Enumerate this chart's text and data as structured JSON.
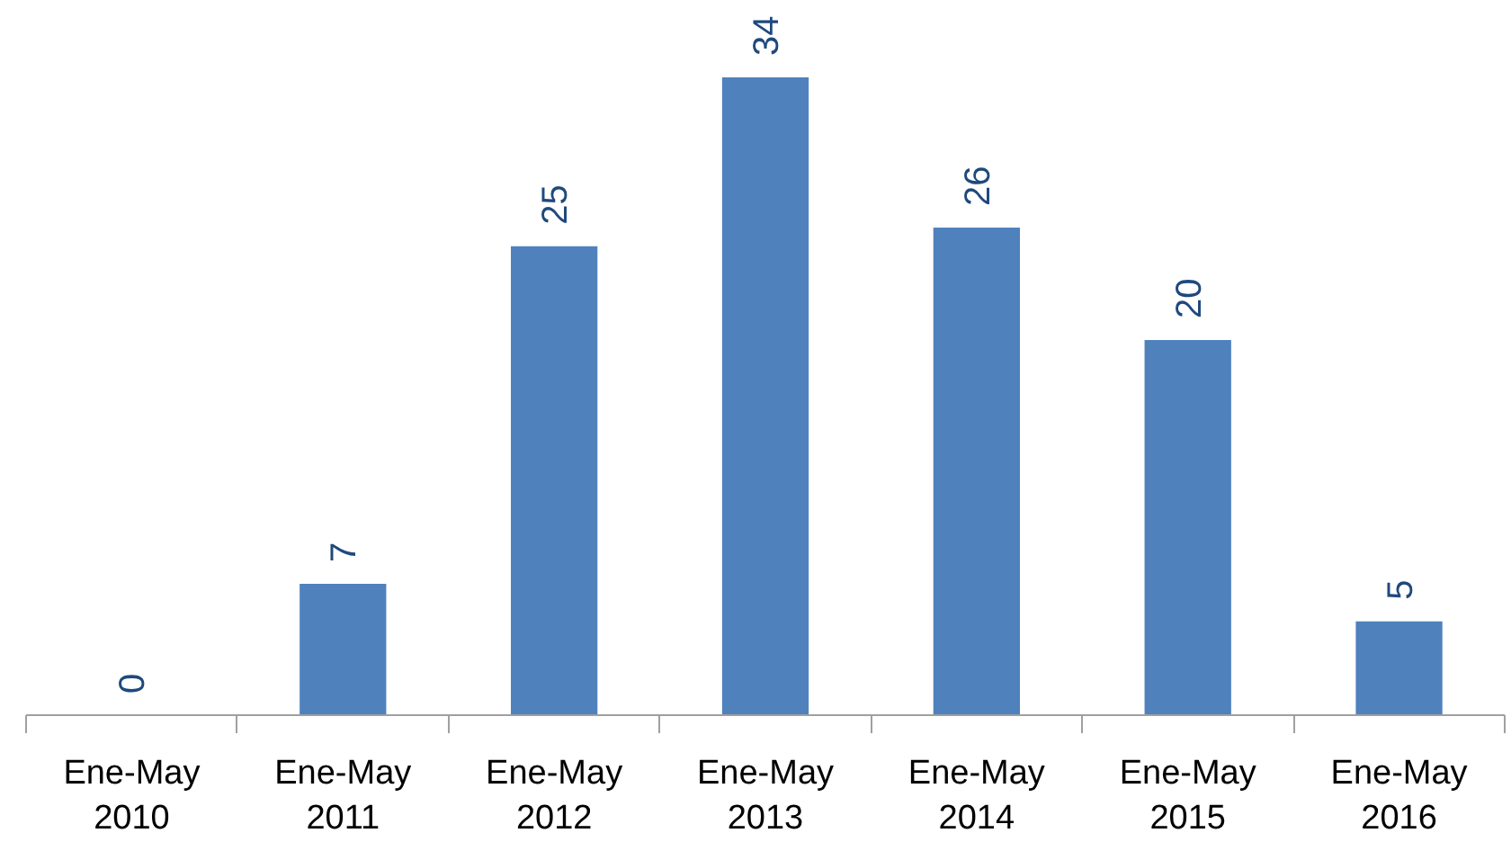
{
  "chart_data": {
    "type": "bar",
    "categories": [
      "Ene-May\n2010",
      "Ene-May\n2011",
      "Ene-May\n2012",
      "Ene-May\n2013",
      "Ene-May\n2014",
      "Ene-May\n2015",
      "Ene-May\n2016"
    ],
    "values": [
      0,
      7,
      25,
      34,
      26,
      20,
      5
    ],
    "color": "#4f81bd",
    "data_labels": true
  }
}
